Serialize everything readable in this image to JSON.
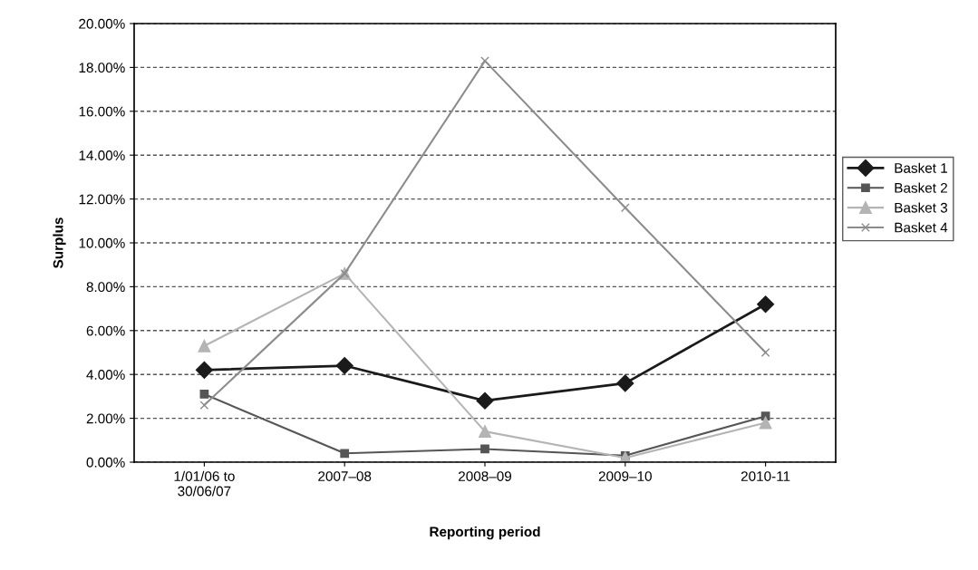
{
  "chart_data": {
    "type": "line",
    "xlabel": "Reporting period",
    "ylabel": "Surplus",
    "categories": [
      "1/01/06 to\n30/06/07",
      "2007–08",
      "2008–09",
      "2009–10",
      "2010-11"
    ],
    "series": [
      {
        "name": "Basket 1",
        "color": "#1a1a1a",
        "marker": "diamond",
        "values": [
          4.2,
          4.4,
          2.8,
          3.6,
          7.2
        ]
      },
      {
        "name": "Basket 2",
        "color": "#555555",
        "marker": "square",
        "values": [
          3.1,
          0.4,
          0.6,
          0.3,
          2.1
        ]
      },
      {
        "name": "Basket 3",
        "color": "#b4b4b4",
        "marker": "triangle",
        "values": [
          5.3,
          8.6,
          1.4,
          0.2,
          1.8
        ]
      },
      {
        "name": "Basket 4",
        "color": "#8c8c8c",
        "marker": "cross",
        "values": [
          2.6,
          8.6,
          18.3,
          11.6,
          5.0
        ]
      }
    ],
    "ylim": [
      0,
      20
    ],
    "yticks": [
      {
        "value": 0,
        "label": "0.00%"
      },
      {
        "value": 2,
        "label": "2.00%"
      },
      {
        "value": 4,
        "label": "4.00%"
      },
      {
        "value": 6,
        "label": "6.00%"
      },
      {
        "value": 8,
        "label": "8.00%"
      },
      {
        "value": 10,
        "label": "10.00%"
      },
      {
        "value": 12,
        "label": "12.00%"
      },
      {
        "value": 14,
        "label": "14.00%"
      },
      {
        "value": 16,
        "label": "16.00%"
      },
      {
        "value": 18,
        "label": "18.00%"
      },
      {
        "value": 20,
        "label": "20.00%"
      }
    ],
    "grid": "y",
    "legend": "right",
    "line_style": "solid"
  }
}
